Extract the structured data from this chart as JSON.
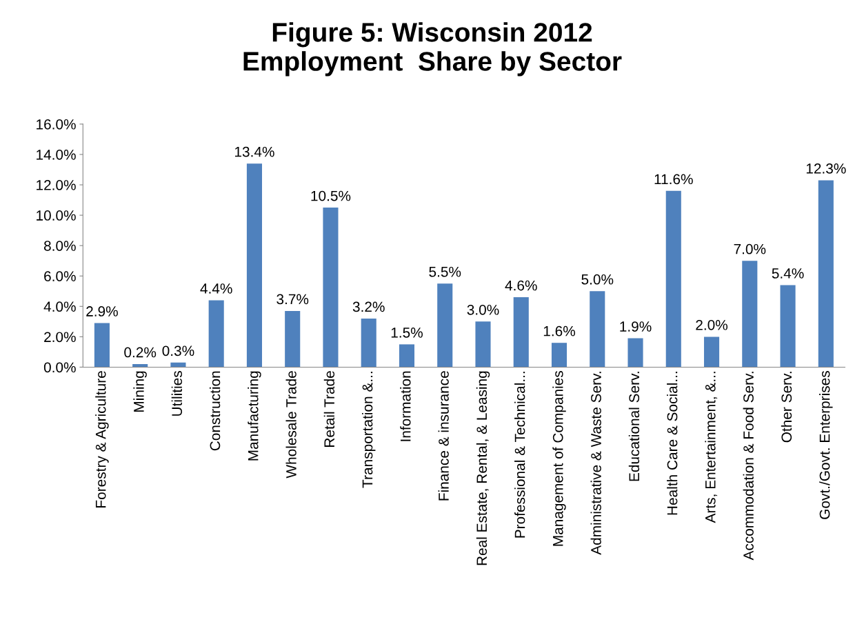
{
  "chart_data": {
    "type": "bar",
    "title": "Figure 5: Wisconsin 2012\nEmployment  Share by Sector",
    "categories": [
      "Forestry & Agriculture",
      "Mining",
      "Utilities",
      "Construction",
      "Manufacturing",
      "Wholesale Trade",
      "Retail Trade",
      "Transportation &...",
      "Information",
      "Finance & insurance",
      "Real Estate, Rental, & Leasing",
      "Professional & Technical...",
      "Management of Companies",
      "Administrative & Waste Serv.",
      "Educational Serv.",
      "Health Care & Social...",
      "Arts, Entertainment, &...",
      "Accommodation & Food Serv.",
      "Other Serv.",
      "Govt./Govt. Enterprises"
    ],
    "values": [
      2.9,
      0.2,
      0.3,
      4.4,
      13.4,
      3.7,
      10.5,
      3.2,
      1.5,
      5.5,
      3.0,
      4.6,
      1.6,
      5.0,
      1.9,
      11.6,
      2.0,
      7.0,
      5.4,
      12.3
    ],
    "value_labels": [
      "2.9%",
      "0.2%",
      "0.3%",
      "4.4%",
      "13.4%",
      "3.7%",
      "10.5%",
      "3.2%",
      "1.5%",
      "5.5%",
      "3.0%",
      "4.6%",
      "1.6%",
      "5.0%",
      "1.9%",
      "11.6%",
      "2.0%",
      "7.0%",
      "5.4%",
      "12.3%"
    ],
    "color": "#4f81bd",
    "ylim": [
      0,
      16
    ],
    "yticks": [
      {
        "value": 0,
        "label": "0.0%"
      },
      {
        "value": 2,
        "label": "2.0%"
      },
      {
        "value": 4,
        "label": "4.0%"
      },
      {
        "value": 6,
        "label": "6.0%"
      },
      {
        "value": 8,
        "label": "8.0%"
      },
      {
        "value": 10,
        "label": "10.0%"
      },
      {
        "value": 12,
        "label": "12.0%"
      },
      {
        "value": 14,
        "label": "14.0%"
      },
      {
        "value": 16,
        "label": "16.0%"
      }
    ],
    "grid": false,
    "legend": false
  }
}
